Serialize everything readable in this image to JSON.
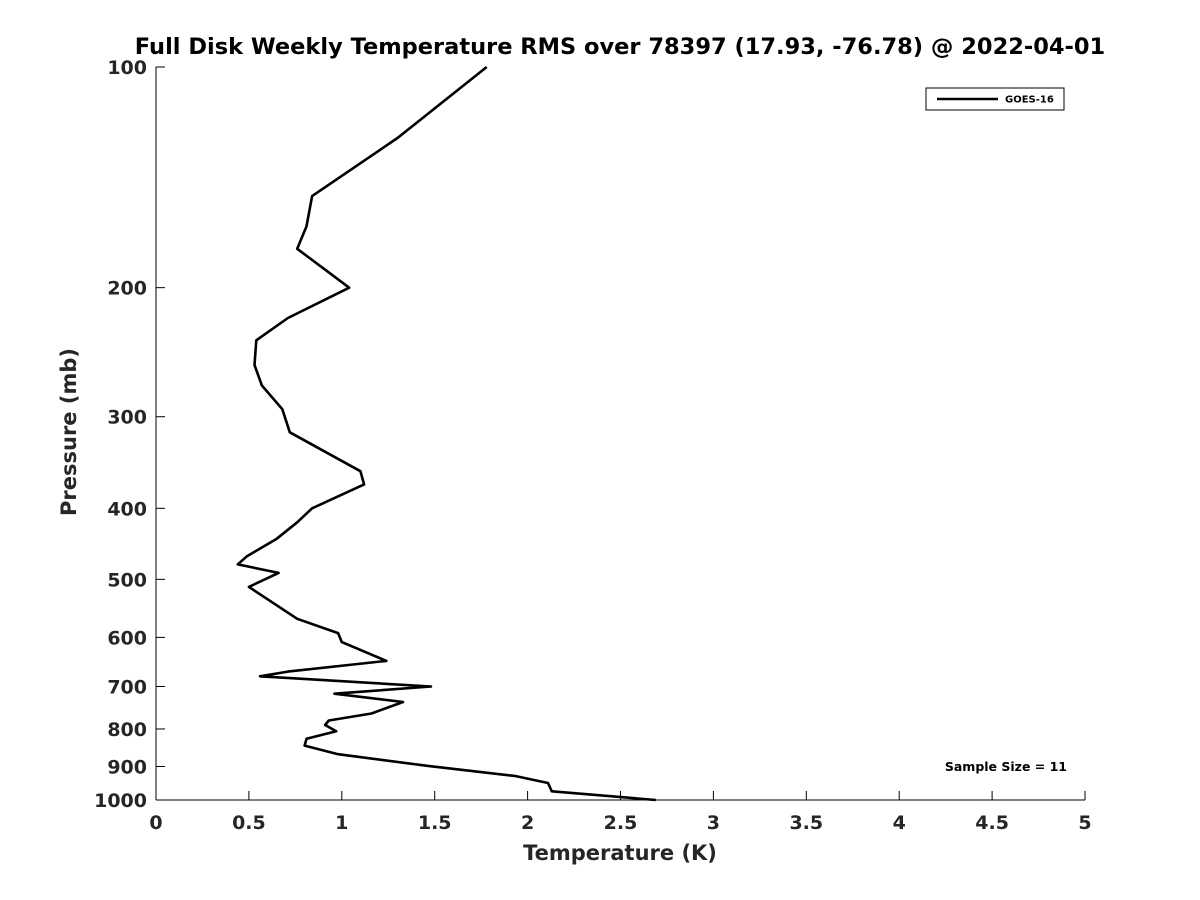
{
  "chart_data": {
    "type": "line",
    "title": "Full Disk Weekly Temperature RMS over 78397 (17.93, -76.78) @ 2022-04-01",
    "xlabel": "Temperature (K)",
    "ylabel": "Pressure (mb)",
    "xlim": [
      0,
      5
    ],
    "ylim": [
      100,
      1000
    ],
    "y_scale": "log",
    "y_direction": "reversed",
    "x_ticks": [
      0,
      0.5,
      1,
      1.5,
      2,
      2.5,
      3,
      3.5,
      4,
      4.5,
      5
    ],
    "x_tick_labels": [
      "0",
      "0.5",
      "1",
      "1.5",
      "2",
      "2.5",
      "3",
      "3.5",
      "4",
      "4.5",
      "5"
    ],
    "y_ticks": [
      100,
      200,
      300,
      400,
      500,
      600,
      700,
      800,
      900,
      1000
    ],
    "y_tick_labels": [
      "100",
      "200",
      "300",
      "400",
      "500",
      "600",
      "700",
      "800",
      "900",
      "1000"
    ],
    "grid": false,
    "legend_position": "top-right",
    "annotation": "Sample Size = 11",
    "series": [
      {
        "name": "GOES-16",
        "color": "#000000",
        "points": [
          [
            1.78,
            100
          ],
          [
            1.3,
            125
          ],
          [
            0.84,
            150
          ],
          [
            0.81,
            165
          ],
          [
            0.76,
            177
          ],
          [
            1.04,
            200
          ],
          [
            0.71,
            220
          ],
          [
            0.54,
            236
          ],
          [
            0.53,
            255
          ],
          [
            0.57,
            272
          ],
          [
            0.68,
            293
          ],
          [
            0.72,
            315
          ],
          [
            1.1,
            356
          ],
          [
            1.12,
            371
          ],
          [
            0.84,
            400
          ],
          [
            0.76,
            418
          ],
          [
            0.65,
            440
          ],
          [
            0.49,
            465
          ],
          [
            0.44,
            477
          ],
          [
            0.66,
            490
          ],
          [
            0.5,
            512
          ],
          [
            0.76,
            566
          ],
          [
            0.98,
            592
          ],
          [
            1.0,
            609
          ],
          [
            1.24,
            646
          ],
          [
            0.71,
            668
          ],
          [
            0.56,
            678
          ],
          [
            1.48,
            700
          ],
          [
            0.96,
            716
          ],
          [
            1.33,
            735
          ],
          [
            1.16,
            762
          ],
          [
            0.93,
            779
          ],
          [
            0.91,
            790
          ],
          [
            0.97,
            806
          ],
          [
            0.81,
            825
          ],
          [
            0.8,
            843
          ],
          [
            0.98,
            866
          ],
          [
            1.47,
            899
          ],
          [
            1.93,
            927
          ],
          [
            2.11,
            948
          ],
          [
            2.13,
            973
          ],
          [
            2.69,
            1000
          ]
        ]
      }
    ]
  }
}
